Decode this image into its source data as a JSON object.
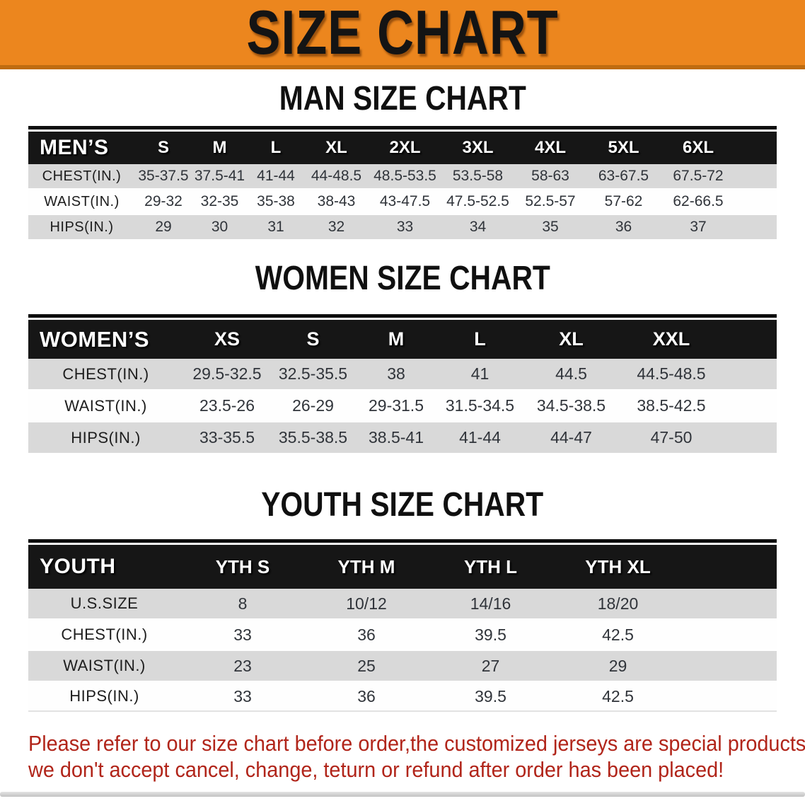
{
  "banner": {
    "title": "SIZE CHART"
  },
  "colors": {
    "banner_orange": "#EC861E",
    "header_black": "#161616",
    "row_gray": "#D9D9D9",
    "footer_red": "#B1251A"
  },
  "sections": [
    {
      "title": "MAN SIZE CHART",
      "group_label": "MEN’S",
      "columns": [
        "S",
        "M",
        "L",
        "XL",
        "2XL",
        "3XL",
        "4XL",
        "5XL",
        "6XL"
      ],
      "rows": [
        {
          "label": "CHEST(IN.)",
          "values": [
            "35-37.5",
            "37.5-41",
            "41-44",
            "44-48.5",
            "48.5-53.5",
            "53.5-58",
            "58-63",
            "63-67.5",
            "67.5-72"
          ]
        },
        {
          "label": "WAIST(IN.)",
          "values": [
            "29-32",
            "32-35",
            "35-38",
            "38-43",
            "43-47.5",
            "47.5-52.5",
            "52.5-57",
            "57-62",
            "62-66.5"
          ]
        },
        {
          "label": "HIPS(IN.)",
          "values": [
            "29",
            "30",
            "31",
            "32",
            "33",
            "34",
            "35",
            "36",
            "37"
          ]
        }
      ]
    },
    {
      "title": "WOMEN SIZE CHART",
      "group_label": "WOMEN’S",
      "columns": [
        "XS",
        "S",
        "M",
        "L",
        "XL",
        "XXL"
      ],
      "rows": [
        {
          "label": "CHEST(IN.)",
          "values": [
            "29.5-32.5",
            "32.5-35.5",
            "38",
            "41",
            "44.5",
            "44.5-48.5"
          ]
        },
        {
          "label": "WAIST(IN.)",
          "values": [
            "23.5-26",
            "26-29",
            "29-31.5",
            "31.5-34.5",
            "34.5-38.5",
            "38.5-42.5"
          ]
        },
        {
          "label": "HIPS(IN.)",
          "values": [
            "33-35.5",
            "35.5-38.5",
            "38.5-41",
            "41-44",
            "44-47",
            "47-50"
          ]
        }
      ]
    },
    {
      "title": "YOUTH SIZE CHART",
      "group_label": "YOUTH",
      "columns": [
        "YTH S",
        "YTH M",
        "YTH L",
        "YTH XL"
      ],
      "rows": [
        {
          "label": "U.S.SIZE",
          "values": [
            "8",
            "10/12",
            "14/16",
            "18/20"
          ]
        },
        {
          "label": "CHEST(IN.)",
          "values": [
            "33",
            "36",
            "39.5",
            "42.5"
          ]
        },
        {
          "label": "WAIST(IN.)",
          "values": [
            "23",
            "25",
            "27",
            "29"
          ]
        },
        {
          "label": "HIPS(IN.)",
          "values": [
            "33",
            "36",
            "39.5",
            "42.5"
          ]
        }
      ]
    }
  ],
  "footer": {
    "line1": "Please refer to our size chart before order,the customized jerseys are special products,",
    "line2": "we don't accept cancel, change, teturn or refund after order has been placed!"
  }
}
